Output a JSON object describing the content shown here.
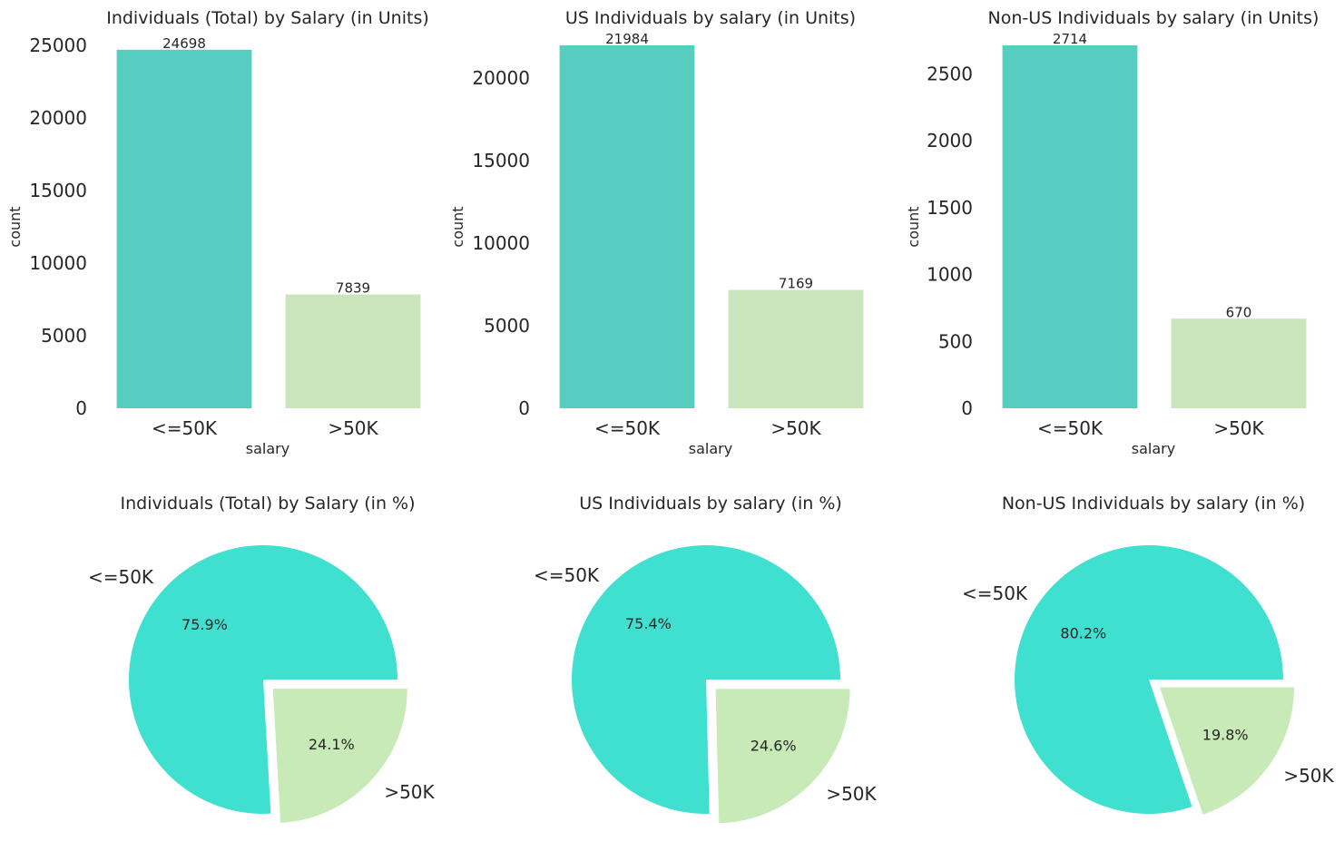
{
  "colors": {
    "bar_low": "#57cdbf",
    "bar_high": "#cae4bc",
    "pie_low": "#40e0d0",
    "pie_high": "#c7eab6",
    "text": "#262626"
  },
  "chart_data": [
    {
      "type": "bar",
      "title": "Individuals (Total) by Salary (in Units)",
      "xlabel": "salary",
      "ylabel": "count",
      "categories": [
        "<=50K",
        ">50K"
      ],
      "values": [
        24698,
        7839
      ],
      "data_labels": [
        "24698",
        "7839"
      ],
      "ylim": [
        0,
        25000
      ],
      "yticks": [
        0,
        5000,
        10000,
        15000,
        20000,
        25000
      ],
      "ytick_labels": [
        "0",
        "5000",
        "10000",
        "15000",
        "20000",
        "25000"
      ],
      "grid": false
    },
    {
      "type": "bar",
      "title": "US Individuals by salary (in Units)",
      "xlabel": "salary",
      "ylabel": "count",
      "categories": [
        "<=50K",
        ">50K"
      ],
      "values": [
        21984,
        7169
      ],
      "data_labels": [
        "21984",
        "7169"
      ],
      "ylim": [
        0,
        21984
      ],
      "yticks": [
        0,
        5000,
        10000,
        15000,
        20000
      ],
      "ytick_labels": [
        "0",
        "5000",
        "10000",
        "15000",
        "20000"
      ],
      "grid": false
    },
    {
      "type": "bar",
      "title": "Non-US Individuals by salary (in Units)",
      "xlabel": "salary",
      "ylabel": "count",
      "categories": [
        "<=50K",
        ">50K"
      ],
      "values": [
        2714,
        670
      ],
      "data_labels": [
        "2714",
        "670"
      ],
      "ylim": [
        0,
        2714
      ],
      "yticks": [
        0,
        500,
        1000,
        1500,
        2000,
        2500
      ],
      "ytick_labels": [
        "0",
        "500",
        "1000",
        "1500",
        "2000",
        "2500"
      ],
      "grid": false
    },
    {
      "type": "pie",
      "title": "Individuals (Total) by Salary (in %)",
      "labels": [
        "<=50K",
        ">50K"
      ],
      "values": [
        75.9,
        24.1
      ],
      "pct_labels": [
        "75.9%",
        "24.1%"
      ],
      "explode": [
        0,
        0.1
      ]
    },
    {
      "type": "pie",
      "title": "US Individuals by salary (in %)",
      "labels": [
        "<=50K",
        ">50K"
      ],
      "values": [
        75.4,
        24.6
      ],
      "pct_labels": [
        "75.4%",
        "24.6%"
      ],
      "explode": [
        0,
        0.1
      ]
    },
    {
      "type": "pie",
      "title": "Non-US Individuals by salary (in %)",
      "labels": [
        "<=50K",
        ">50K"
      ],
      "values": [
        80.2,
        19.8
      ],
      "pct_labels": [
        "80.2%",
        "19.8%"
      ],
      "explode": [
        0,
        0.1
      ]
    }
  ]
}
